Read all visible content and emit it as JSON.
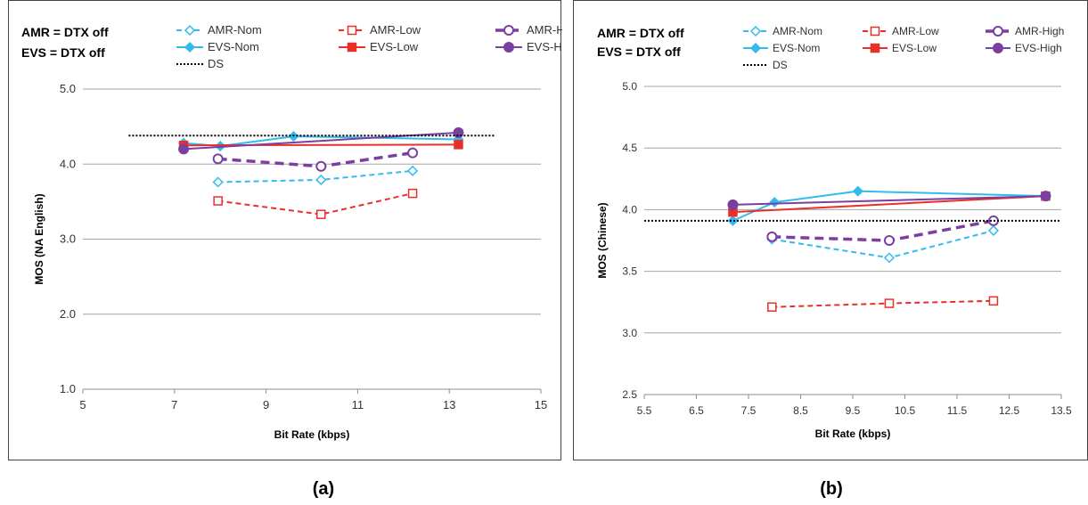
{
  "captions": [
    "(a)",
    "(b)"
  ],
  "legend_styles": {
    "AMR-Nom": {
      "color": "#33bbee",
      "dash": "6,4",
      "marker": "diamond-open",
      "width": 2
    },
    "AMR-Low": {
      "color": "#e8302a",
      "dash": "6,4",
      "marker": "square-open",
      "width": 2
    },
    "AMR-High": {
      "color": "#7b3fa0",
      "dash": "10,6",
      "marker": "circle-open",
      "width": 3.5
    },
    "EVS-Nom": {
      "color": "#33bbee",
      "dash": "",
      "marker": "diamond",
      "width": 2
    },
    "EVS-Low": {
      "color": "#e8302a",
      "dash": "",
      "marker": "square",
      "width": 2
    },
    "EVS-High": {
      "color": "#7b3fa0",
      "dash": "",
      "marker": "circle",
      "width": 2
    },
    "DS": {
      "color": "#000000",
      "dash": "2,2",
      "marker": "none",
      "width": 2
    }
  },
  "chart_data": [
    {
      "type": "line",
      "notes": [
        "AMR = DTX off",
        "EVS = DTX off"
      ],
      "xlabel": "Bit Rate (kbps)",
      "ylabel": "MOS (NA English)",
      "xlim": [
        5,
        15
      ],
      "ylim": [
        1.0,
        5.0
      ],
      "xticks": [
        5,
        7,
        9,
        11,
        13,
        15
      ],
      "xtick_labels": [
        "5",
        "7",
        "9",
        "11",
        "13",
        "15"
      ],
      "yticks": [
        1.0,
        2.0,
        3.0,
        4.0,
        5.0
      ],
      "ytick_labels": [
        "1.0",
        "2.0",
        "3.0",
        "4.0",
        "5.0"
      ],
      "grid": "horizontal",
      "legend": [
        "AMR-Nom",
        "AMR-Low",
        "AMR-High",
        "EVS-Nom",
        "EVS-Low",
        "EVS-High",
        "DS"
      ],
      "series": [
        {
          "name": "AMR-Nom",
          "x": [
            7.95,
            10.2,
            12.2
          ],
          "y": [
            3.76,
            3.79,
            3.91
          ]
        },
        {
          "name": "AMR-Low",
          "x": [
            7.95,
            10.2,
            12.2
          ],
          "y": [
            3.51,
            3.33,
            3.61
          ]
        },
        {
          "name": "AMR-High",
          "x": [
            7.95,
            10.2,
            12.2
          ],
          "y": [
            4.07,
            3.97,
            4.15
          ]
        },
        {
          "name": "EVS-Nom",
          "x": [
            7.2,
            8.0,
            9.6,
            13.2
          ],
          "y": [
            4.28,
            4.24,
            4.37,
            4.33
          ]
        },
        {
          "name": "EVS-Low",
          "x": [
            7.2,
            13.2
          ],
          "y": [
            4.25,
            4.26
          ]
        },
        {
          "name": "EVS-High",
          "x": [
            7.2,
            13.2
          ],
          "y": [
            4.2,
            4.42
          ]
        },
        {
          "name": "DS",
          "x": [
            6.0,
            14.0
          ],
          "y": [
            4.38,
            4.38
          ]
        }
      ]
    },
    {
      "type": "line",
      "notes": [
        "AMR = DTX off",
        "EVS = DTX off"
      ],
      "xlabel": "Bit Rate (kbps)",
      "ylabel": "MOS (Chinese)",
      "xlim": [
        5.5,
        13.5
      ],
      "ylim": [
        2.5,
        5.0
      ],
      "xticks": [
        5.5,
        6.5,
        7.5,
        8.5,
        9.5,
        10.5,
        11.5,
        12.5,
        13.5
      ],
      "xtick_labels": [
        "5.5",
        "6.5",
        "7.5",
        "8.5",
        "9.5",
        "10.5",
        "11.5",
        "12.5",
        "13.5"
      ],
      "yticks": [
        2.5,
        3.0,
        3.5,
        4.0,
        4.5,
        5.0
      ],
      "ytick_labels": [
        "2.5",
        "3.0",
        "3.5",
        "4.0",
        "4.5",
        "5.0"
      ],
      "grid": "horizontal",
      "legend": [
        "AMR-Nom",
        "AMR-Low",
        "AMR-High",
        "EVS-Nom",
        "EVS-Low",
        "EVS-High",
        "DS"
      ],
      "series": [
        {
          "name": "AMR-Nom",
          "x": [
            7.95,
            10.2,
            12.2
          ],
          "y": [
            3.76,
            3.61,
            3.83
          ]
        },
        {
          "name": "AMR-Low",
          "x": [
            7.95,
            10.2,
            12.2
          ],
          "y": [
            3.21,
            3.24,
            3.26
          ]
        },
        {
          "name": "AMR-High",
          "x": [
            7.95,
            10.2,
            12.2
          ],
          "y": [
            3.78,
            3.75,
            3.91
          ]
        },
        {
          "name": "EVS-Nom",
          "x": [
            7.2,
            8.0,
            9.6,
            13.2
          ],
          "y": [
            3.91,
            4.06,
            4.15,
            4.11
          ]
        },
        {
          "name": "EVS-Low",
          "x": [
            7.2,
            13.2
          ],
          "y": [
            3.98,
            4.11
          ]
        },
        {
          "name": "EVS-High",
          "x": [
            7.2,
            13.2
          ],
          "y": [
            4.04,
            4.11
          ]
        },
        {
          "name": "DS",
          "x": [
            5.5,
            13.5
          ],
          "y": [
            3.91,
            3.91
          ]
        }
      ]
    }
  ]
}
